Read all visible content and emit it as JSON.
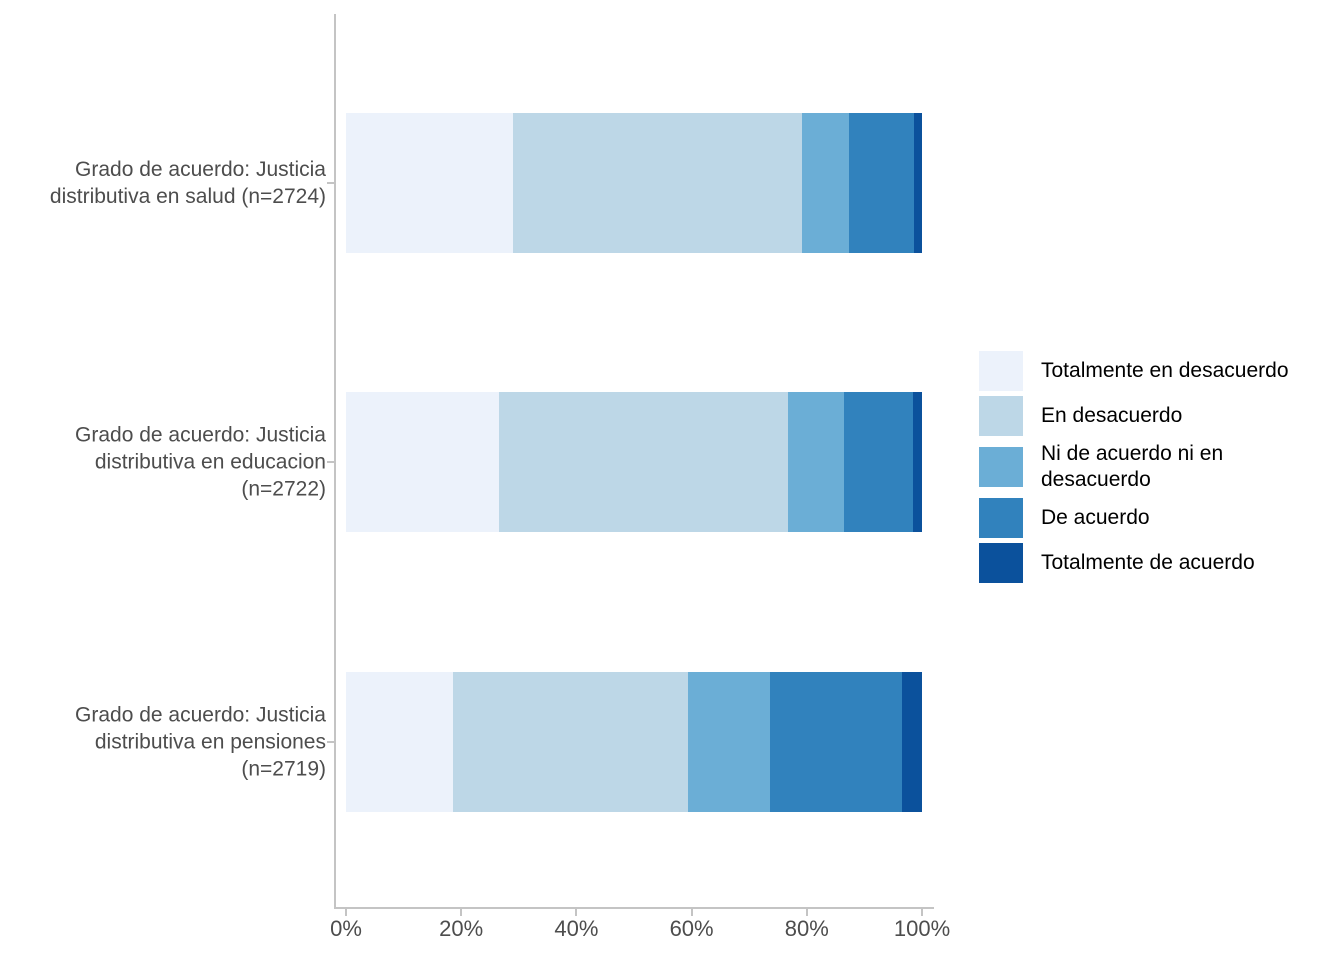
{
  "chart_data": {
    "type": "bar",
    "variant": "horizontal-stacked-percent",
    "title": "",
    "xlabel": "",
    "ylabel": "",
    "xlim": [
      0,
      100
    ],
    "x_ticks": [
      "0%",
      "20%",
      "40%",
      "60%",
      "80%",
      "100%"
    ],
    "grid": false,
    "legend_position": "right",
    "categories": [
      {
        "label": "Grado de acuerdo: Justicia distributiva en salud (n=2724)",
        "label_lines": [
          "Grado de acuerdo: Justicia",
          "distributiva en salud (n=2724)"
        ]
      },
      {
        "label": "Grado de acuerdo: Justicia distributiva en educacion (n=2722)",
        "label_lines": [
          "Grado de acuerdo: Justicia",
          "distributiva en educacion",
          "(n=2722)"
        ]
      },
      {
        "label": "Grado de acuerdo: Justicia distributiva en pensiones (n=2719)",
        "label_lines": [
          "Grado de acuerdo: Justicia",
          "distributiva en pensiones",
          "(n=2719)"
        ]
      }
    ],
    "series": [
      {
        "name": "Totalmente en desacuerdo",
        "name_lines": [
          "Totalmente en desacuerdo"
        ],
        "color": "#ecf2fb",
        "values": [
          29.0,
          26.6,
          18.6
        ]
      },
      {
        "name": "En desacuerdo",
        "name_lines": [
          "En desacuerdo"
        ],
        "color": "#bdd7e7",
        "values": [
          50.1,
          50.1,
          40.8
        ]
      },
      {
        "name": "Ni de acuerdo ni en desacuerdo",
        "name_lines": [
          "Ni de acuerdo ni en",
          "desacuerdo"
        ],
        "color": "#6baed6",
        "values": [
          8.2,
          9.8,
          14.2
        ]
      },
      {
        "name": "De acuerdo",
        "name_lines": [
          "De acuerdo"
        ],
        "color": "#3182bd",
        "values": [
          11.3,
          11.9,
          23.0
        ]
      },
      {
        "name": "Totalmente de acuerdo",
        "name_lines": [
          "Totalmente de acuerdo"
        ],
        "color": "#0b519c",
        "values": [
          1.4,
          1.6,
          3.4
        ]
      }
    ],
    "axis_color": "#c4c4c4",
    "axis_text_color": "#4d4d4d",
    "legend_text_color": "#000000"
  }
}
